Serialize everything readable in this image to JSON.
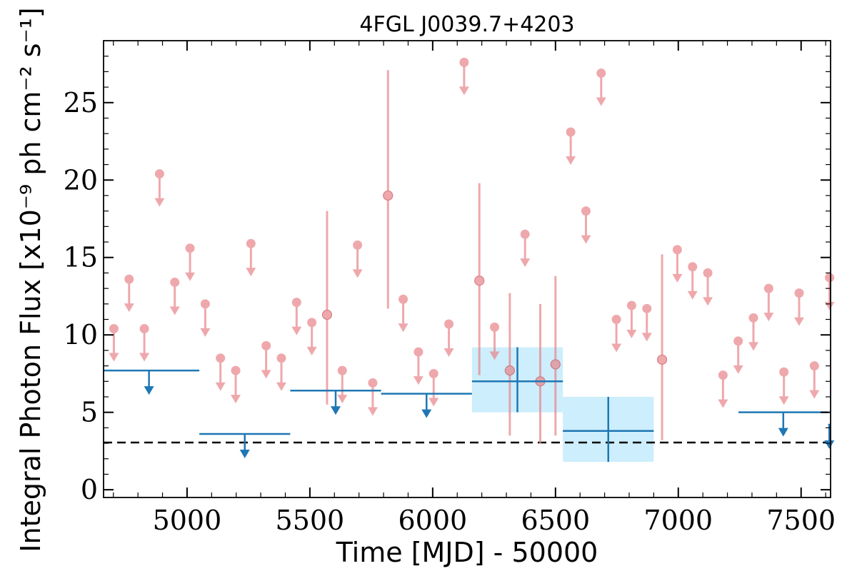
{
  "chart_data": {
    "type": "scatter",
    "title": "4FGL J0039.7+4203",
    "xlabel": "Time [MJD] - 50000",
    "ylabel": "Integral Photon Flux [x10⁻⁹ ph cm⁻² s⁻¹]",
    "xlim": [
      4660,
      7620
    ],
    "ylim": [
      -0.5,
      29
    ],
    "x_ticks": [
      5000,
      5500,
      6000,
      6500,
      7000,
      7500
    ],
    "y_ticks": [
      0,
      5,
      10,
      15,
      20,
      25
    ],
    "grid": false,
    "reference_line": {
      "y": 3.05,
      "style": "dashed",
      "color": "#000000"
    },
    "colors": {
      "fine": "#e8848a",
      "coarse": "#1f77b4",
      "band": "#cdeefc"
    },
    "series": [
      {
        "kind": "fine-bin upper limits",
        "x": [
          4702,
          4764,
          4826,
          4888,
          4950,
          5012,
          5074,
          5136,
          5198,
          5260,
          5322,
          5384,
          5446,
          5508,
          5632,
          5694,
          5756,
          5880,
          5942,
          6004,
          6066,
          6128,
          6252,
          6376,
          6562,
          6624,
          6686,
          6748,
          6810,
          6872,
          6996,
          7058,
          7120,
          7182,
          7244,
          7306,
          7368,
          7430,
          7492,
          7554,
          7616
        ],
        "y": [
          10.4,
          13.6,
          10.4,
          20.4,
          13.4,
          15.6,
          12.0,
          8.5,
          7.7,
          15.9,
          9.3,
          8.5,
          12.1,
          10.8,
          7.7,
          15.8,
          6.9,
          12.3,
          8.9,
          7.5,
          10.7,
          27.6,
          10.5,
          16.5,
          23.1,
          18.0,
          26.9,
          11.0,
          11.9,
          11.7,
          15.5,
          14.4,
          14.0,
          7.4,
          9.6,
          11.1,
          13.0,
          7.6,
          12.7,
          8.0,
          13.7
        ]
      },
      {
        "kind": "fine-bin detections",
        "x": [
          5570,
          5818,
          6190,
          6314,
          6438,
          6500,
          6934
        ],
        "y": [
          11.3,
          19.0,
          13.5,
          7.7,
          7.0,
          8.1,
          8.4
        ],
        "y_err_low": [
          5.8,
          7.3,
          6.1,
          4.2,
          4.0,
          4.6,
          5.2
        ],
        "y_err_high": [
          6.7,
          8.1,
          6.3,
          5.0,
          5.0,
          5.7,
          6.8
        ]
      },
      {
        "kind": "coarse-bin upper limits",
        "x_low": [
          4660,
          5050,
          5420,
          5790,
          7245,
          7610
        ],
        "x_high": [
          5050,
          5420,
          5790,
          6160,
          7610,
          7620
        ],
        "y": [
          7.7,
          3.6,
          6.4,
          6.2,
          5.0,
          4.2
        ]
      },
      {
        "kind": "coarse-bin detections",
        "x_low": [
          6160,
          6530
        ],
        "x_high": [
          6530,
          6900
        ],
        "y": [
          7.0,
          3.8
        ],
        "y_err_low": [
          2.0,
          2.0
        ],
        "y_err_high": [
          2.2,
          2.2
        ]
      }
    ]
  }
}
